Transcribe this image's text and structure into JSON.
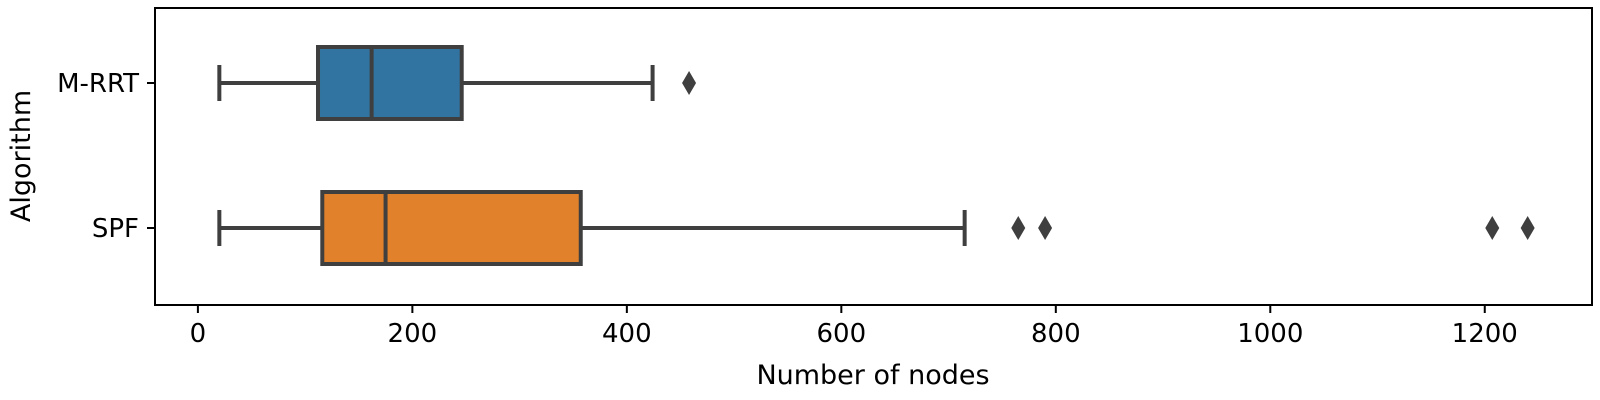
{
  "chart_data": {
    "type": "boxplot",
    "orientation": "horizontal",
    "xlabel": "Number of nodes",
    "ylabel": "Algorithm",
    "xlim": [
      -40,
      1300
    ],
    "xticks": [
      0,
      200,
      400,
      600,
      800,
      1000,
      1200
    ],
    "grid": false,
    "categories": [
      "M-RRT",
      "SPF"
    ],
    "series": [
      {
        "name": "M-RRT",
        "color": "#3274a1",
        "whisker_low": 20,
        "q1": 112,
        "median": 162,
        "q3": 246,
        "whisker_high": 424,
        "outliers": [
          458
        ]
      },
      {
        "name": "SPF",
        "color": "#e1812c",
        "whisker_low": 20,
        "q1": 116,
        "median": 175,
        "q3": 357,
        "whisker_high": 715,
        "outliers": [
          765,
          790,
          1207,
          1240
        ]
      }
    ],
    "line_color": "#3f3f3f"
  }
}
